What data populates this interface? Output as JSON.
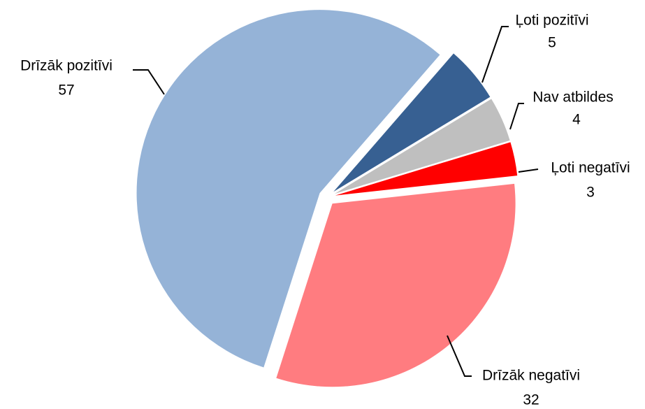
{
  "chart_data": {
    "type": "pie",
    "categories": [
      "Ļoti pozitīvi",
      "Nav atbildes",
      "Ļoti negatīvi",
      "Drīzāk negatīvi",
      "Drīzāk pozitīvi"
    ],
    "values": [
      5,
      4,
      3,
      32,
      57
    ],
    "colors": [
      "#376092",
      "#bfbfbf",
      "#ff0000",
      "#ff7c80",
      "#95b3d7"
    ]
  }
}
